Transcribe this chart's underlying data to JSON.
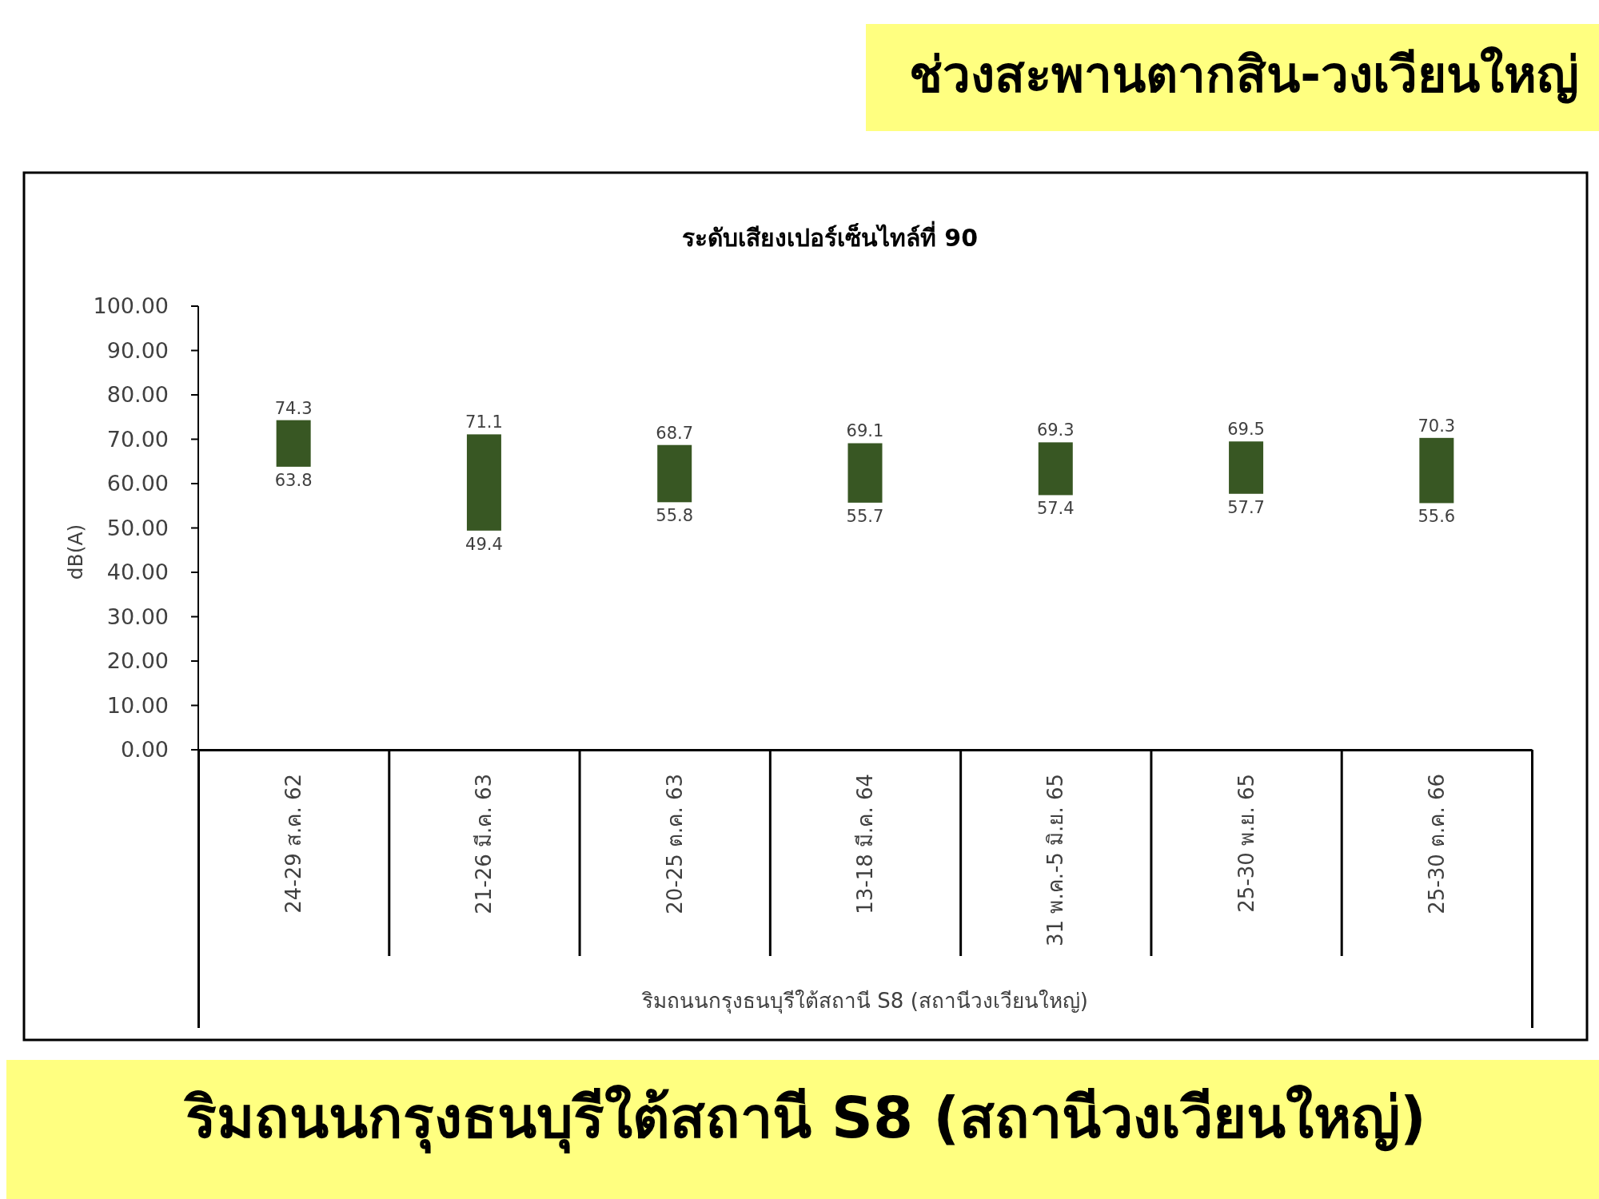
{
  "chart_data": {
    "type": "bar",
    "title": "ระดับเสียงเปอร์เซ็นไทล์ที่ 90",
    "subtitle": "ช่วงสะพานตากสิน-วงเวียนใหญ่",
    "xlabel": "ริมถนนกรุงธนบุรีใต้สถานี S8 (สถานีวงเวียนใหญ่)",
    "ylabel": "dB(A)",
    "categories": [
      "24-29 ส.ค. 62",
      "21-26 มี.ค. 63",
      "20-25 ต.ค. 63",
      "13-18 มี.ค. 64",
      "31 พ.ค.-5 มิ.ย. 65",
      "25-30 พ.ย. 65",
      "25-30 ต.ค. 66"
    ],
    "base": [
      63.8,
      49.4,
      55.8,
      55.7,
      57.4,
      57.7,
      55.6
    ],
    "values": [
      10.5,
      21.7,
      12.9,
      13.4,
      11.9,
      11.8,
      14.7
    ],
    "color": "#385723",
    "ylim": [
      0,
      100
    ],
    "yticks": [
      {
        "value": 0,
        "label": "0.00"
      },
      {
        "value": 10,
        "label": "10.00"
      },
      {
        "value": 20,
        "label": "20.00"
      },
      {
        "value": 30,
        "label": "30.00"
      },
      {
        "value": 40,
        "label": "40.00"
      },
      {
        "value": 50,
        "label": "50.00"
      },
      {
        "value": 60,
        "label": "60.00"
      },
      {
        "value": 70,
        "label": "70.00"
      },
      {
        "value": 80,
        "label": "80.00"
      },
      {
        "value": 90,
        "label": "90.00"
      },
      {
        "value": 100,
        "label": "100.00"
      }
    ],
    "annotations": [
      {
        "text": "74.3",
        "x": "24-29 ส.ค. 62",
        "y": 74.3
      },
      {
        "text": "63.8",
        "x": "24-29 ส.ค. 62",
        "y": 63.8
      },
      {
        "text": "71.1",
        "x": "21-26 มี.ค. 63",
        "y": 71.1
      },
      {
        "text": "49.4",
        "x": "21-26 มี.ค. 63",
        "y": 49.4
      },
      {
        "text": "68.7",
        "x": "20-25 ต.ค. 63",
        "y": 68.7
      },
      {
        "text": "55.8",
        "x": "20-25 ต.ค. 63",
        "y": 55.8
      },
      {
        "text": "69.1",
        "x": "13-18 มี.ค. 64",
        "y": 69.1
      },
      {
        "text": "55.7",
        "x": "13-18 มี.ค. 64",
        "y": 55.7
      },
      {
        "text": "69.3",
        "x": "31 พ.ค.-5 มิ.ย. 65",
        "y": 69.3
      },
      {
        "text": "57.4",
        "x": "31 พ.ค.-5 มิ.ย. 65",
        "y": 57.4
      },
      {
        "text": "69.5",
        "x": "25-30 พ.ย. 65",
        "y": 69.5
      },
      {
        "text": "57.7",
        "x": "25-30 พ.ย. 65",
        "y": 57.7
      },
      {
        "text": "70.3",
        "x": "25-30 ต.ค. 66",
        "y": 70.3
      },
      {
        "text": "55.6",
        "x": "25-30 ต.ค. 66",
        "y": 55.6
      },
      "ริมถนนกรุงธนบุรีใต้สถานี S8 (สถานีวงเวียนใหญ่)"
    ]
  }
}
